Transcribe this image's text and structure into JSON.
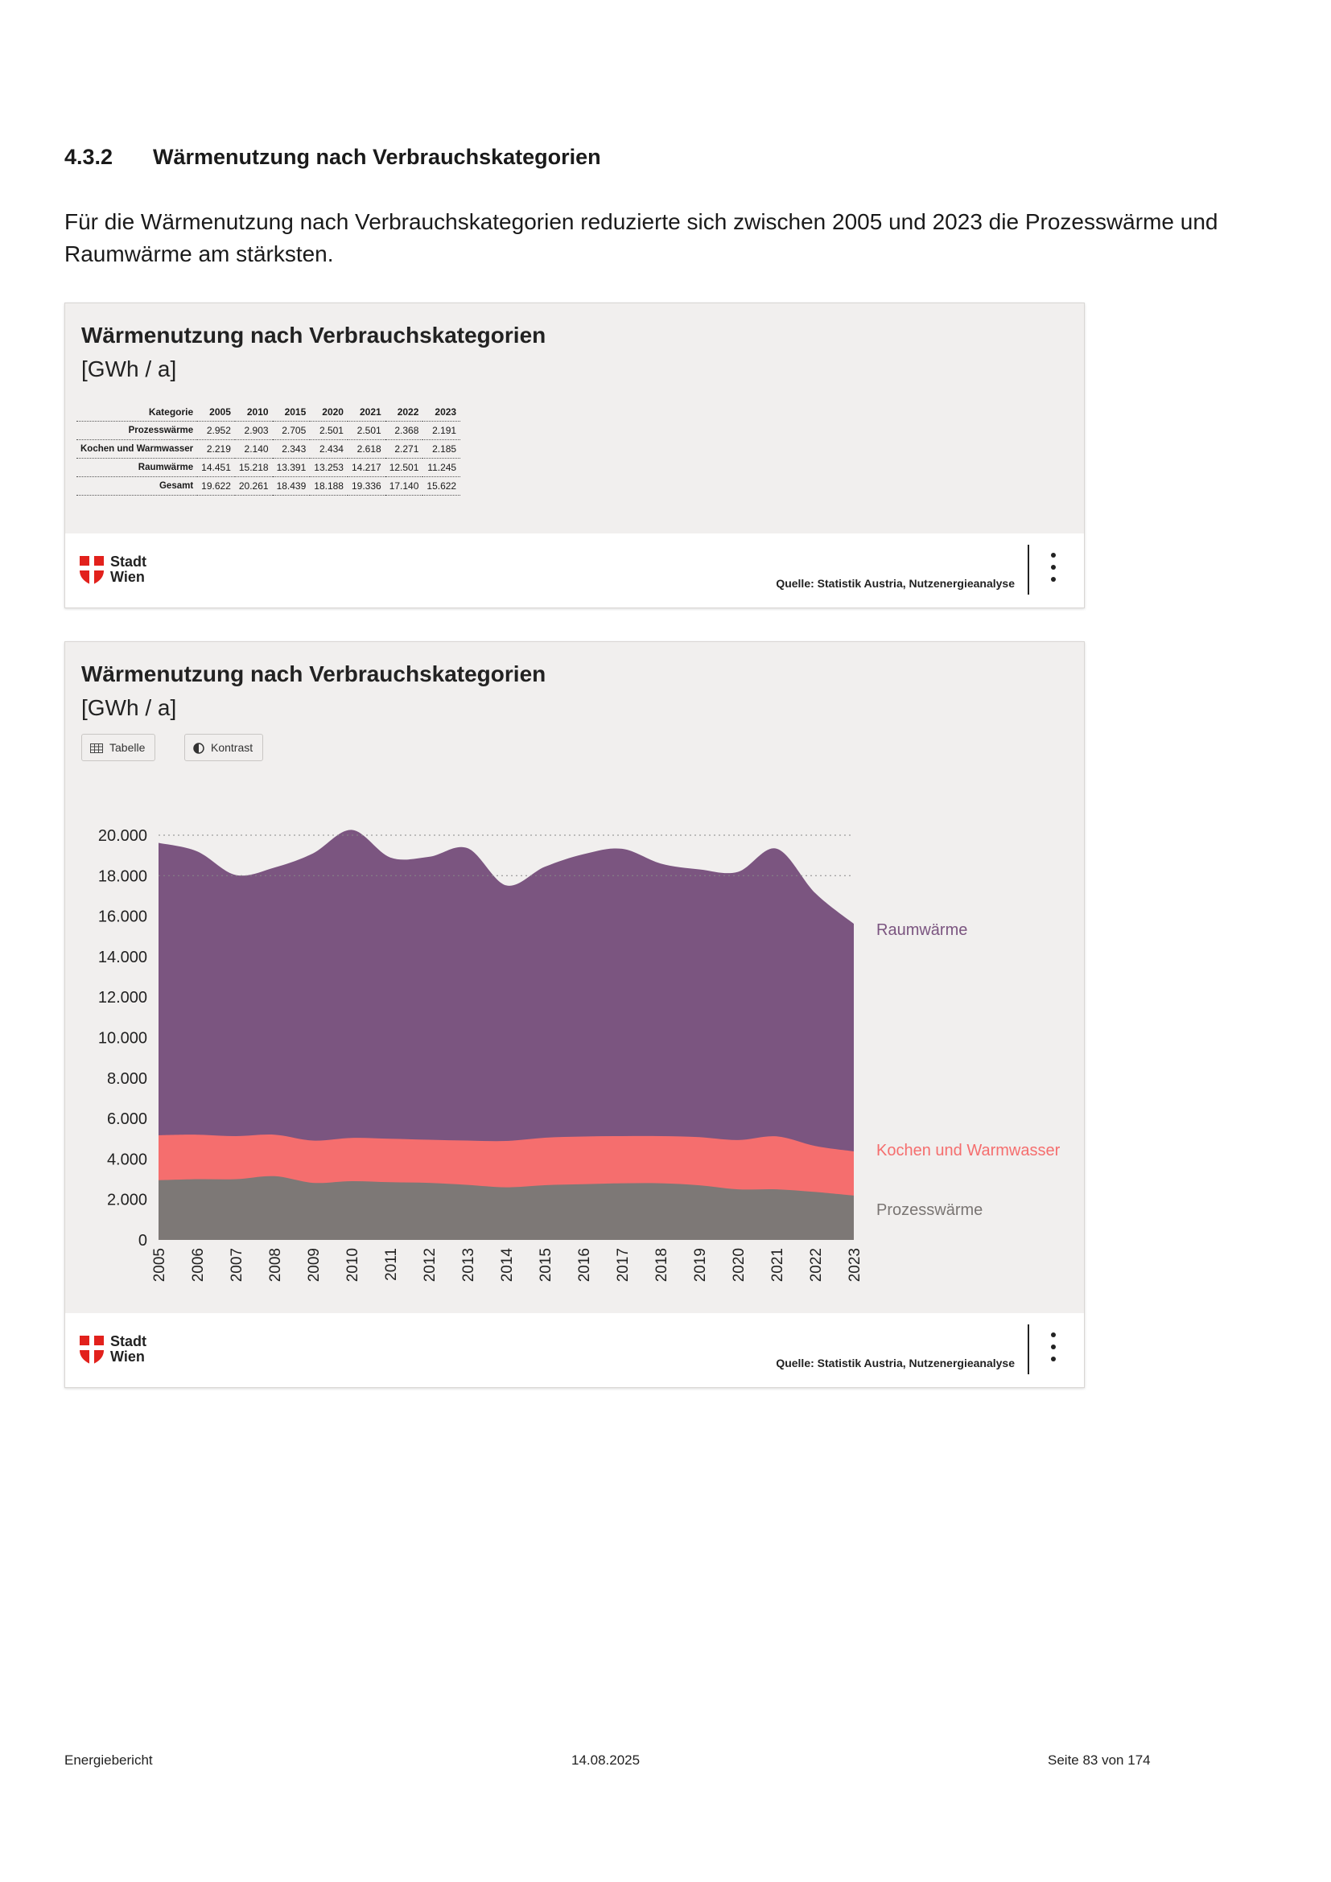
{
  "section": {
    "number": "4.3.2",
    "title": "Wärmenutzung nach Verbrauchskategorien",
    "intro": "Für die Wärmenutzung nach Verbrauchskategorien reduzierte sich zwischen 2005 und 2023 die Prozesswärme und Raumwärme am stärksten."
  },
  "table_card": {
    "title": "Wärmenutzung nach Verbrauchskategorien",
    "unit": "[GWh / a]",
    "columns": [
      "Kategorie",
      "2005",
      "2010",
      "2015",
      "2020",
      "2021",
      "2022",
      "2023"
    ],
    "rows": [
      [
        "Prozesswärme",
        "2.952",
        "2.903",
        "2.705",
        "2.501",
        "2.501",
        "2.368",
        "2.191"
      ],
      [
        "Kochen und Warmwasser",
        "2.219",
        "2.140",
        "2.343",
        "2.434",
        "2.618",
        "2.271",
        "2.185"
      ],
      [
        "Raumwärme",
        "14.451",
        "15.218",
        "13.391",
        "13.253",
        "14.217",
        "12.501",
        "11.245"
      ],
      [
        "Gesamt",
        "19.622",
        "20.261",
        "18.439",
        "18.188",
        "19.336",
        "17.140",
        "15.622"
      ]
    ],
    "logo_line1": "Stadt",
    "logo_line2": "Wien",
    "source": "Quelle: Statistik Austria, Nutzenergieanalyse"
  },
  "chart_card": {
    "title": "Wärmenutzung nach Verbrauchskategorien",
    "unit": "[GWh / a]",
    "button_table": "Tabelle",
    "button_contrast": "Kontrast",
    "logo_line1": "Stadt",
    "logo_line2": "Wien",
    "source": "Quelle: Statistik Austria, Nutzenergieanalyse"
  },
  "chart_data": {
    "type": "area",
    "stacked": true,
    "x": [
      "2005",
      "2006",
      "2007",
      "2008",
      "2009",
      "2010",
      "2011",
      "2012",
      "2013",
      "2014",
      "2015",
      "2016",
      "2017",
      "2018",
      "2019",
      "2020",
      "2021",
      "2022",
      "2023"
    ],
    "y_ticks": [
      "0",
      "2.000",
      "4.000",
      "6.000",
      "8.000",
      "10.000",
      "12.000",
      "14.000",
      "16.000",
      "18.000",
      "20.000"
    ],
    "ylim": [
      0,
      20000
    ],
    "grid": "horizontal dotted at 18.000 and 20.000",
    "legend": "inline labels at right end of each series",
    "series": [
      {
        "name": "Prozesswärme",
        "color": "#7d7876",
        "values": [
          2952,
          3000,
          3000,
          3150,
          2820,
          2903,
          2850,
          2820,
          2720,
          2600,
          2705,
          2750,
          2800,
          2800,
          2700,
          2501,
          2501,
          2368,
          2191
        ]
      },
      {
        "name": "Kochen und Warmwasser",
        "color": "#f56e6e",
        "values": [
          2219,
          2200,
          2130,
          2050,
          2090,
          2140,
          2150,
          2130,
          2190,
          2290,
          2343,
          2360,
          2330,
          2330,
          2380,
          2434,
          2618,
          2271,
          2185
        ]
      },
      {
        "name": "Raumwärme",
        "color": "#7b5580",
        "values": [
          14451,
          14000,
          12900,
          13200,
          14190,
          15218,
          13900,
          13980,
          14450,
          12630,
          13391,
          13950,
          14200,
          13470,
          13230,
          13253,
          14217,
          12501,
          11245
        ]
      }
    ]
  },
  "page_footer": {
    "left": "Energiebericht",
    "center": "14.08.2025",
    "right": "Seite 83 von 174"
  }
}
